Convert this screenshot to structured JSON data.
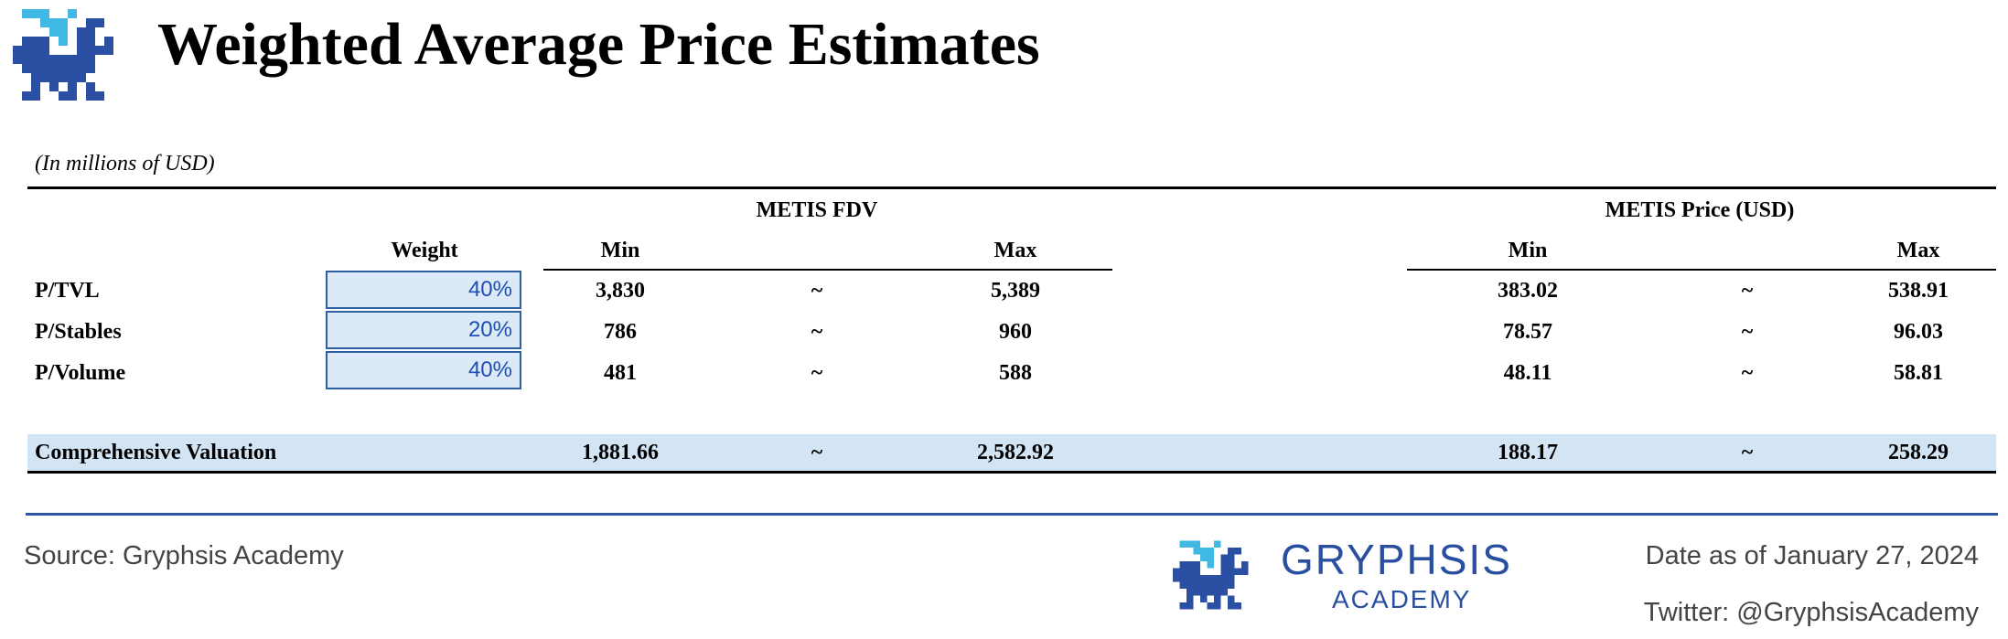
{
  "header": {
    "title": "Weighted Average Price Estimates"
  },
  "table": {
    "unit_note": "(In millions of USD)",
    "group_headers": {
      "fdv": "METIS FDV",
      "price": "METIS Price (USD)"
    },
    "col_headers": {
      "weight": "Weight",
      "fdv_min": "Min",
      "fdv_max": "Max",
      "price_min": "Min",
      "price_max": "Max"
    },
    "rows": [
      {
        "label": "P/TVL",
        "weight": "40%",
        "fdv_min": "3,830",
        "sep1": "~",
        "fdv_max": "5,389",
        "price_min": "383.02",
        "sep2": "~",
        "price_max": "538.91"
      },
      {
        "label": "P/Stables",
        "weight": "20%",
        "fdv_min": "786",
        "sep1": "~",
        "fdv_max": "960",
        "price_min": "78.57",
        "sep2": "~",
        "price_max": "96.03"
      },
      {
        "label": "P/Volume",
        "weight": "40%",
        "fdv_min": "481",
        "sep1": "~",
        "fdv_max": "588",
        "price_min": "48.11",
        "sep2": "~",
        "price_max": "58.81"
      }
    ],
    "total": {
      "label": "Comprehensive Valuation",
      "fdv_min": "1,881.66",
      "sep1": "~",
      "fdv_max": "2,582.92",
      "price_min": "188.17",
      "sep2": "~",
      "price_max": "258.29"
    }
  },
  "footer": {
    "source": "Source: Gryphsis Academy",
    "brand_name": "GRYPHSIS",
    "brand_sub": "ACADEMY",
    "date": "Date as of January 27, 2024",
    "twitter": "Twitter: @GryphsisAcademy"
  },
  "colors": {
    "accent": "#2c56a8",
    "highlight": "#d3e4f5",
    "weight_text": "#1f4fb3",
    "logo_dark": "#2b4fa2",
    "logo_light": "#3fb8e3"
  }
}
